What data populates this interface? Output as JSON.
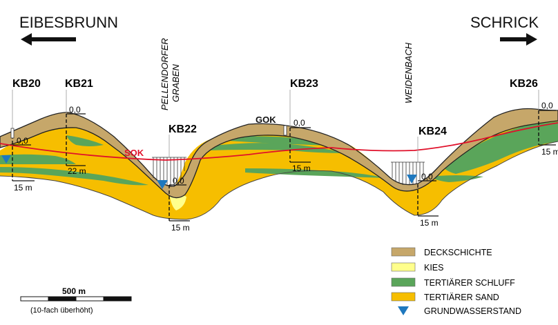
{
  "directions": {
    "left": "EIBESBRUNN",
    "right": "SCHRICK"
  },
  "boreholes": [
    {
      "id": "KB20",
      "top_label": "0,0",
      "depth_label": "15 m"
    },
    {
      "id": "KB21",
      "top_label": "0,0",
      "depth_label": "22 m"
    },
    {
      "id": "KB22",
      "top_label": "0,0",
      "depth_label": "15 m"
    },
    {
      "id": "KB23",
      "top_label": "0,0",
      "depth_label": "15 m"
    },
    {
      "id": "KB24",
      "top_label": "0,0",
      "depth_label": "15 m"
    },
    {
      "id": "KB26",
      "top_label": "0,0",
      "depth_label": "15 m"
    }
  ],
  "valleys": {
    "first": [
      "PELLENDORFER",
      "GRABEN"
    ],
    "second": "WEIDENBACH"
  },
  "line_labels": {
    "sok": "SOK",
    "gok": "GOK"
  },
  "legend": [
    {
      "label": "DECKSCHICHTE",
      "color": "#c6a76a"
    },
    {
      "label": "KIES",
      "color": "#ffff8c"
    },
    {
      "label": "TERTIÄRER SCHLUFF",
      "color": "#5aa55a"
    },
    {
      "label": "TERTIÄRER SAND",
      "color": "#f6be00"
    },
    {
      "label": "GRUNDWASSERSTAND",
      "color": "#1e78be",
      "icon": "triangle-down-icon"
    }
  ],
  "scale": {
    "label": "500 m",
    "note": "(10-fach überhöht)"
  },
  "colors": {
    "sok_line": "#e0102a",
    "groundwater": "#1e78be"
  }
}
